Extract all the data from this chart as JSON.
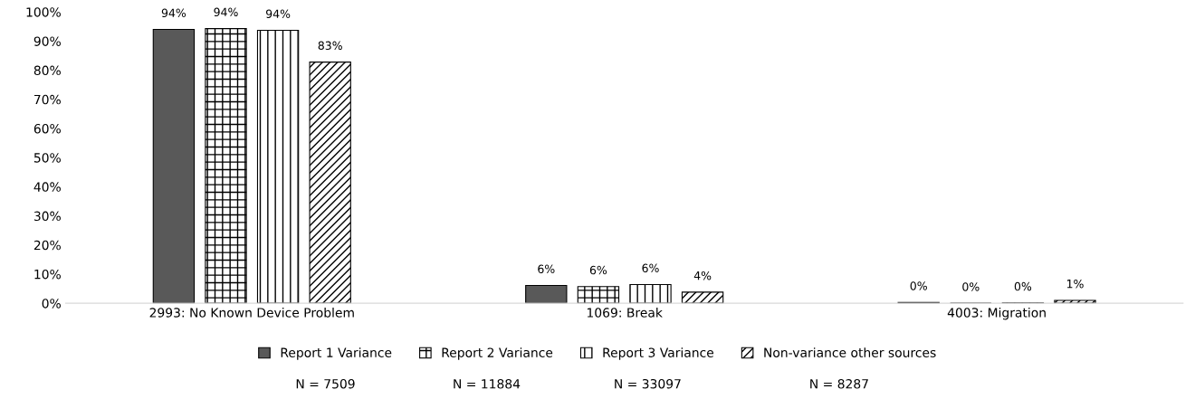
{
  "chart_data": {
    "type": "bar",
    "categories": [
      "2993: No Known Device Problem",
      "1069: Break",
      "4003: Migration"
    ],
    "series": [
      {
        "name": "Report 1 Variance",
        "color": "#595959",
        "values": [
          94,
          6.1,
          0.3
        ],
        "value_labels": [
          "94%",
          "6%",
          "0%"
        ]
      },
      {
        "name": "Report 2 Variance",
        "color": "#000000",
        "values": [
          94.3,
          5.7,
          0
        ],
        "value_labels": [
          "94%",
          "6%",
          "0%"
        ]
      },
      {
        "name": "Report 3 Variance",
        "color": "#000000",
        "values": [
          93.7,
          6.4,
          0.1
        ],
        "value_labels": [
          "94%",
          "6%",
          "0%"
        ]
      },
      {
        "name": "Non-variance other sources",
        "color": "#000000",
        "values": [
          82.8,
          3.8,
          1.0
        ],
        "value_labels": [
          "83%",
          "4%",
          "1%"
        ]
      }
    ],
    "ylim": [
      0,
      100
    ],
    "yticks": [
      {
        "value": 0,
        "label": "0%"
      },
      {
        "value": 10,
        "label": "10%"
      },
      {
        "value": 20,
        "label": "20%"
      },
      {
        "value": 30,
        "label": "30%"
      },
      {
        "value": 40,
        "label": "40%"
      },
      {
        "value": 50,
        "label": "50%"
      },
      {
        "value": 60,
        "label": "60%"
      },
      {
        "value": 70,
        "label": "70%"
      },
      {
        "value": 80,
        "label": "80%"
      },
      {
        "value": 90,
        "label": "90%"
      },
      {
        "value": 100,
        "label": "100%"
      }
    ],
    "grid": false,
    "legend": "bottom",
    "annotations": [
      "N = 7509",
      "N = 11884",
      "N = 33097",
      "N = 8287"
    ]
  }
}
